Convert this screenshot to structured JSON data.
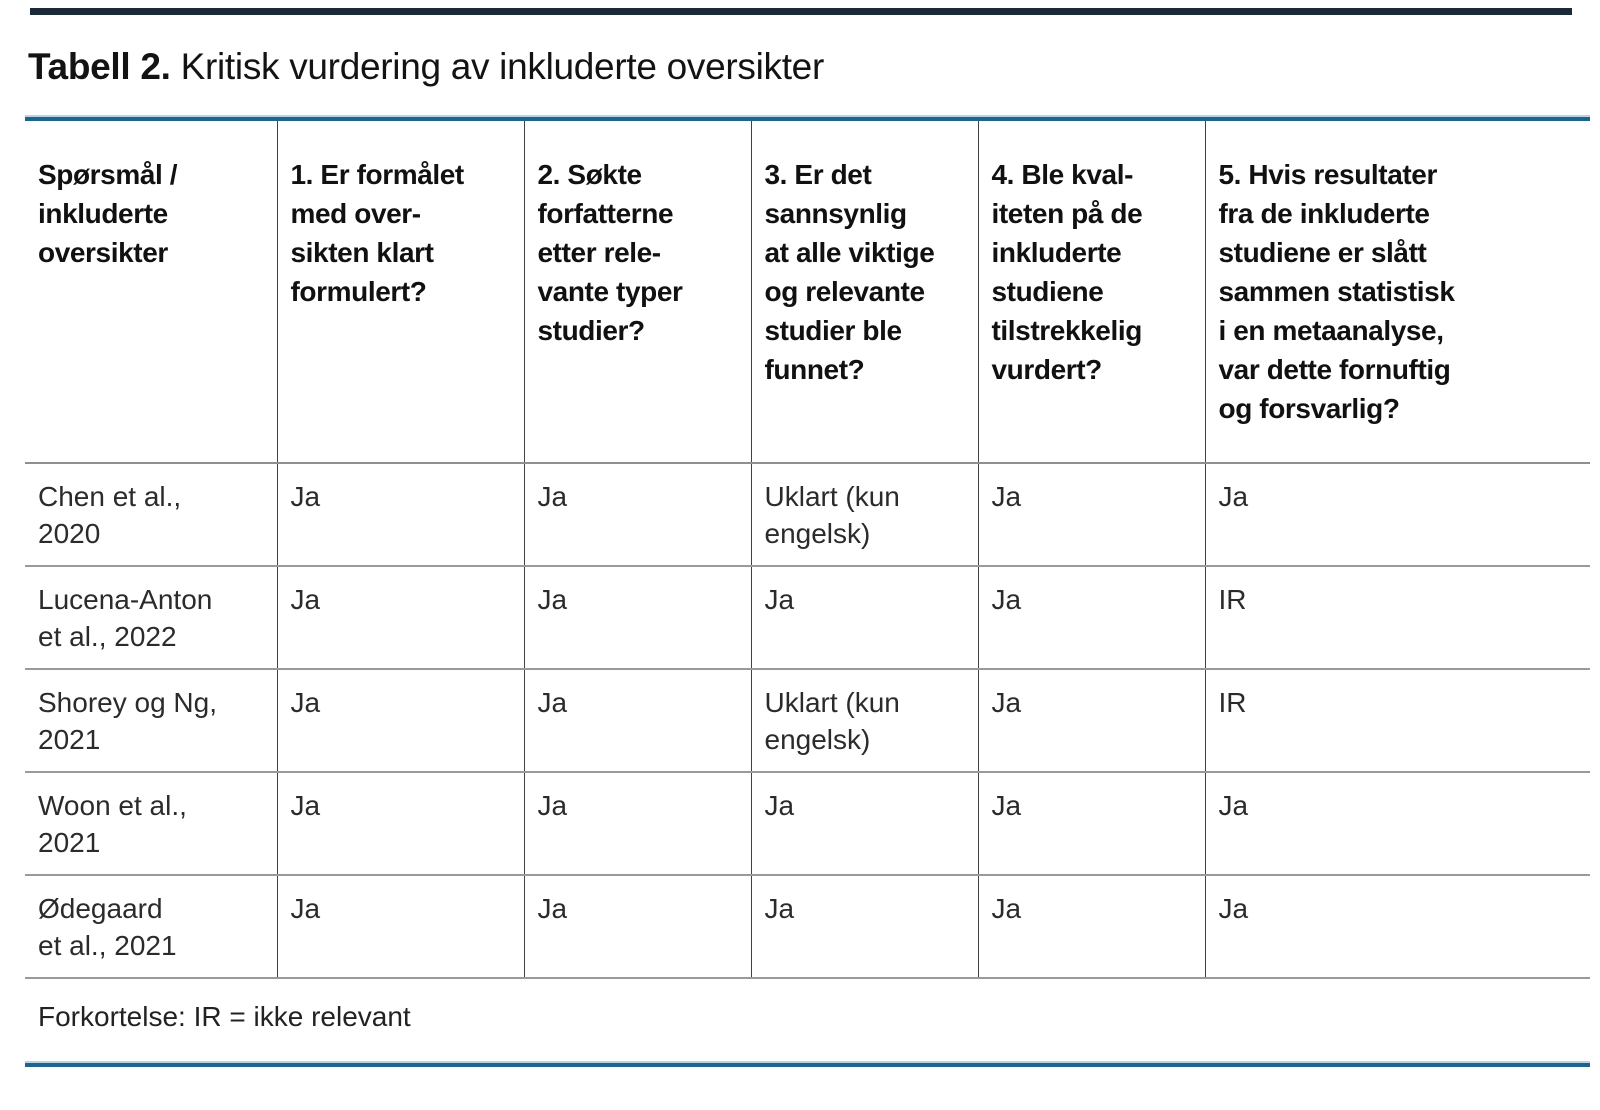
{
  "title": {
    "bold": "Tabell 2.",
    "rest": "Kritisk vurdering av inkluderte oversikter"
  },
  "table": {
    "headers": [
      "Spørsmål /\ninkluderte\noversikter",
      "1. Er formålet\nmed over-\nsikten klart\nformulert?",
      "2. Søkte\nforfatterne\netter rele-\nvante typer\nstudier?",
      "3. Er det\nsannsynlig\nat alle viktige\nog relevante\nstudier ble\nfunnet?",
      "4. Ble kval-\niteten på de\ninkluderte\nstudiene\ntilstrekkelig\nvurdert?",
      "5. Hvis resultater\nfra de inkluderte\nstudiene er slått\nsammen statistisk\ni en metaanalyse,\nvar dette fornuftig\nog forsvarlig?"
    ],
    "rows": [
      {
        "study": "Chen et al.,\n2020",
        "q1": "Ja",
        "q2": "Ja",
        "q3": "Uklart (kun\nengelsk)",
        "q4": "Ja",
        "q5": "Ja"
      },
      {
        "study": "Lucena-Anton\net al., 2022",
        "q1": "Ja",
        "q2": "Ja",
        "q3": "Ja",
        "q4": "Ja",
        "q5": "IR"
      },
      {
        "study": "Shorey og Ng,\n2021",
        "q1": "Ja",
        "q2": "Ja",
        "q3": "Uklart (kun\nengelsk)",
        "q4": "Ja",
        "q5": "IR"
      },
      {
        "study": "Woon et al.,\n2021",
        "q1": "Ja",
        "q2": "Ja",
        "q3": "Ja",
        "q4": "Ja",
        "q5": "Ja"
      },
      {
        "study": "Ødegaard\net al., 2021",
        "q1": "Ja",
        "q2": "Ja",
        "q3": "Ja",
        "q4": "Ja",
        "q5": "Ja"
      }
    ]
  },
  "footnote": "Forkortelse: IR = ikke relevant",
  "colors": {
    "top_bar": "#1b2a36",
    "rule_blue": "#1d648f",
    "rule_light_edge": "#b9d3e2",
    "grid_horizontal": "#9a9a9a",
    "grid_vertical": "#414141",
    "text": "#1a1a1a"
  }
}
